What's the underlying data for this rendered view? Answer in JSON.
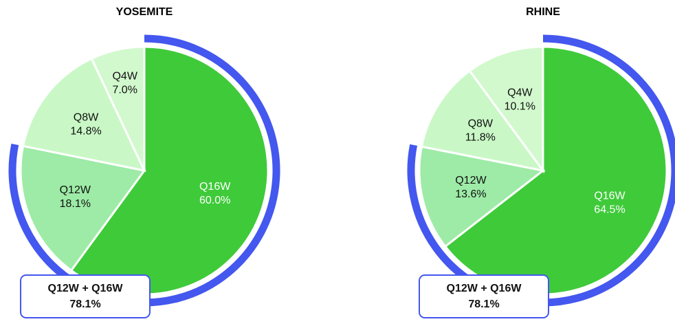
{
  "chart_data": [
    {
      "type": "pie",
      "title": "YOSEMITE",
      "categories": [
        "Q16W",
        "Q12W",
        "Q8W",
        "Q4W"
      ],
      "values": [
        60.0,
        18.1,
        14.8,
        7.0
      ],
      "value_labels": [
        "60.0%",
        "18.1%",
        "14.8%",
        "7.0%"
      ],
      "colors": [
        "#3fca3a",
        "#9deba6",
        "#c9f8c6",
        "#d2f9cd"
      ],
      "annotation": {
        "label": "Q12W + Q16W",
        "value": 78.1,
        "value_label": "78.1%",
        "color": "#4457ee"
      }
    },
    {
      "type": "pie",
      "title": "RHINE",
      "categories": [
        "Q16W",
        "Q12W",
        "Q8W",
        "Q4W"
      ],
      "values": [
        64.5,
        13.6,
        11.8,
        10.1
      ],
      "value_labels": [
        "64.5%",
        "13.6%",
        "11.8%",
        "10.1%"
      ],
      "colors": [
        "#3fca3a",
        "#9deba6",
        "#c9f8c6",
        "#d2f9cd"
      ],
      "annotation": {
        "label": "Q12W + Q16W",
        "value": 78.1,
        "value_label": "78.1%",
        "color": "#4457ee"
      }
    }
  ]
}
